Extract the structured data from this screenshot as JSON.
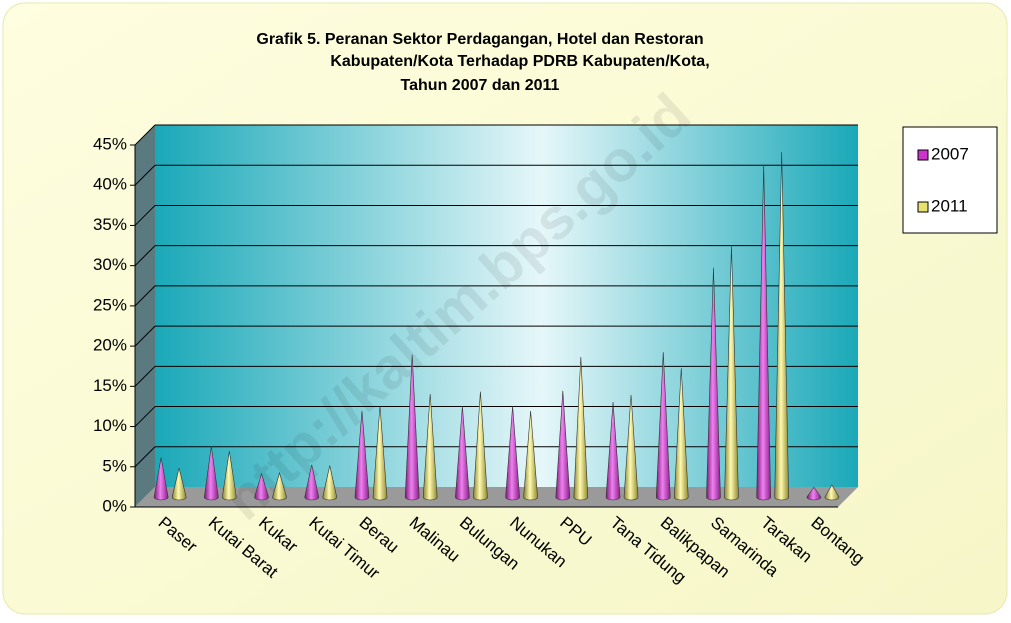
{
  "chart_data": {
    "type": "cone",
    "title": [
      "Grafik 5. Peranan Sektor Perdagangan, Hotel dan Restoran",
      "Kabupaten/Kota Terhadap PDRB Kabupaten/Kota,",
      "Tahun 2007 dan 2011"
    ],
    "watermark": "http://kaltim.bps.go.id",
    "categories": [
      "Paser",
      "Kutai Barat",
      "Kukar",
      "Kutai Timur",
      "Berau",
      "Malinau",
      "Bulungan",
      "Nunukan",
      "PPU",
      "Tana Tidung",
      "Balikpapan",
      "Samarinda",
      "Tarakan",
      "Bontang"
    ],
    "series": [
      {
        "name": "2007",
        "color": "#cc33cc",
        "values": [
          4.9,
          6.3,
          2.9,
          4.0,
          10.7,
          17.7,
          11.3,
          11.3,
          13.2,
          11.8,
          18.0,
          28.5,
          41.3,
          1.2
        ]
      },
      {
        "name": "2011",
        "color": "#e8e070",
        "values": [
          3.6,
          5.7,
          3.0,
          3.9,
          11.3,
          12.8,
          13.1,
          10.7,
          17.4,
          12.7,
          16.0,
          31.2,
          42.9,
          1.5
        ]
      }
    ],
    "ylim": [
      0,
      45
    ],
    "yticks": [
      {
        "value": 0,
        "label": "0%"
      },
      {
        "value": 5,
        "label": "5%"
      },
      {
        "value": 10,
        "label": "10%"
      },
      {
        "value": 15,
        "label": "15%"
      },
      {
        "value": 20,
        "label": "20%"
      },
      {
        "value": 25,
        "label": "25%"
      },
      {
        "value": 30,
        "label": "30%"
      },
      {
        "value": 35,
        "label": "35%"
      },
      {
        "value": 40,
        "label": "40%"
      },
      {
        "value": 45,
        "label": "45%"
      }
    ],
    "grid": true,
    "legend": "right"
  }
}
